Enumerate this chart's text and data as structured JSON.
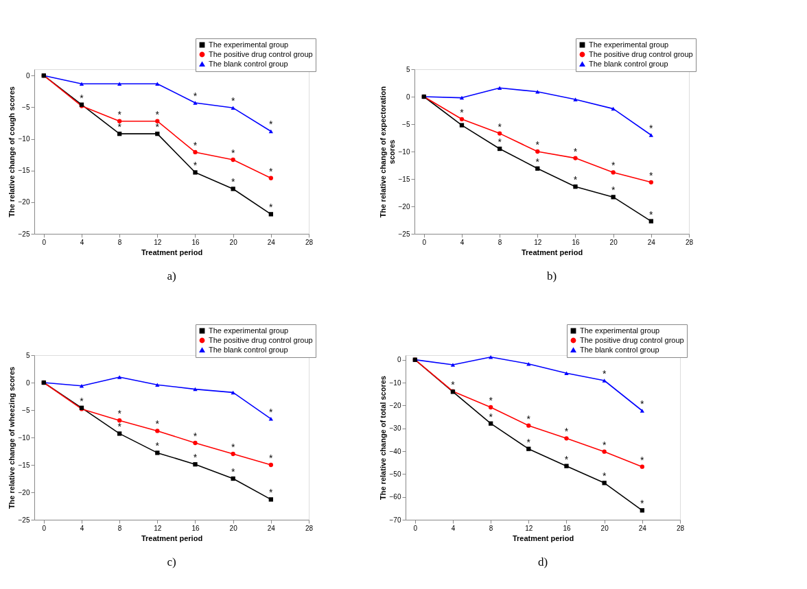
{
  "chart_data": [
    {
      "type": "line",
      "xlabel": "Treatment period",
      "ylabel": "The relative change of cough scores",
      "x": [
        0,
        4,
        8,
        12,
        16,
        20,
        24
      ],
      "xlim": [
        -1,
        28
      ],
      "xticks": [
        0,
        4,
        8,
        12,
        16,
        20,
        24,
        28
      ],
      "ylim": [
        -25,
        1
      ],
      "yticks": [
        -25,
        -20,
        -15,
        -10,
        -5,
        0
      ],
      "legend": "top right",
      "series": [
        {
          "name": "The experimental group",
          "color": "#000000",
          "marker": "square",
          "values": [
            0,
            -4.6,
            -9.2,
            -9.2,
            -15.3,
            -17.9,
            -21.9
          ]
        },
        {
          "name": "The positive drug control group",
          "color": "#ff0000",
          "marker": "circle",
          "values": [
            0,
            -4.8,
            -7.2,
            -7.2,
            -12.1,
            -13.3,
            -16.2
          ]
        },
        {
          "name": "The blank control group",
          "color": "#0000ff",
          "marker": "triangle",
          "values": [
            0,
            -1.3,
            -1.3,
            -1.3,
            -4.3,
            -5.1,
            -8.8
          ]
        }
      ],
      "annotations": [
        {
          "text": "*",
          "x": 4,
          "y": -4.6
        },
        {
          "text": "*",
          "x": 8,
          "y": -9.2
        },
        {
          "text": "*",
          "x": 12,
          "y": -9.2
        },
        {
          "text": "*",
          "x": 16,
          "y": -15.3
        },
        {
          "text": "*",
          "x": 20,
          "y": -17.9
        },
        {
          "text": "*",
          "x": 24,
          "y": -21.9
        },
        {
          "text": "*",
          "x": 8,
          "y": -7.2
        },
        {
          "text": "*",
          "x": 12,
          "y": -7.2
        },
        {
          "text": "*",
          "x": 16,
          "y": -12.1
        },
        {
          "text": "*",
          "x": 20,
          "y": -13.3
        },
        {
          "text": "*",
          "x": 24,
          "y": -16.2
        },
        {
          "text": "*",
          "x": 16,
          "y": -4.3
        },
        {
          "text": "*",
          "x": 20,
          "y": -5.1
        },
        {
          "text": "*",
          "x": 24,
          "y": -8.8
        },
        "a)"
      ]
    },
    {
      "type": "line",
      "xlabel": "Treatment period",
      "ylabel": "The relative change of expectoration scores",
      "x": [
        0,
        4,
        8,
        12,
        16,
        20,
        24
      ],
      "xlim": [
        -1,
        28
      ],
      "xticks": [
        0,
        4,
        8,
        12,
        16,
        20,
        24,
        28
      ],
      "ylim": [
        -25,
        5
      ],
      "yticks": [
        -25,
        -20,
        -15,
        -10,
        -5,
        0,
        5
      ],
      "legend": "top right",
      "series": [
        {
          "name": "The experimental group",
          "color": "#000000",
          "marker": "square",
          "values": [
            0,
            -5.2,
            -9.5,
            -13.1,
            -16.4,
            -18.3,
            -22.7
          ]
        },
        {
          "name": "The positive drug control group",
          "color": "#ff0000",
          "marker": "circle",
          "values": [
            0,
            -4.1,
            -6.7,
            -10,
            -11.2,
            -13.8,
            -15.6
          ]
        },
        {
          "name": "The blank control group",
          "color": "#0000ff",
          "marker": "triangle",
          "values": [
            0,
            -0.2,
            1.6,
            0.9,
            -0.5,
            -2.2,
            -7
          ]
        }
      ],
      "annotations": [
        {
          "text": "*",
          "x": 8,
          "y": -9.5
        },
        {
          "text": "*",
          "x": 12,
          "y": -13.1
        },
        {
          "text": "*",
          "x": 16,
          "y": -16.4
        },
        {
          "text": "*",
          "x": 20,
          "y": -18.3
        },
        {
          "text": "*",
          "x": 24,
          "y": -22.7
        },
        {
          "text": "*",
          "x": 4,
          "y": -4.1
        },
        {
          "text": "*",
          "x": 8,
          "y": -6.7
        },
        {
          "text": "*",
          "x": 12,
          "y": -10
        },
        {
          "text": "*",
          "x": 16,
          "y": -11.2
        },
        {
          "text": "*",
          "x": 20,
          "y": -13.8
        },
        {
          "text": "*",
          "x": 24,
          "y": -15.6
        },
        {
          "text": "*",
          "x": 24,
          "y": -7
        },
        "b)"
      ]
    },
    {
      "type": "line",
      "xlabel": "Treatment period",
      "ylabel": "The relative change of wheezing scores",
      "x": [
        0,
        4,
        8,
        12,
        16,
        20,
        24
      ],
      "xlim": [
        -1,
        28
      ],
      "xticks": [
        0,
        4,
        8,
        12,
        16,
        20,
        24,
        28
      ],
      "ylim": [
        -25,
        5
      ],
      "yticks": [
        -25,
        -20,
        -15,
        -10,
        -5,
        0,
        5
      ],
      "legend": "top right",
      "series": [
        {
          "name": "The experimental group",
          "color": "#000000",
          "marker": "square",
          "values": [
            0,
            -4.6,
            -9.3,
            -12.8,
            -14.9,
            -17.5,
            -21.3
          ]
        },
        {
          "name": "The positive drug control group",
          "color": "#ff0000",
          "marker": "circle",
          "values": [
            0,
            -4.8,
            -6.9,
            -8.8,
            -11,
            -13,
            -15
          ]
        },
        {
          "name": "The blank control group",
          "color": "#0000ff",
          "marker": "triangle",
          "values": [
            0,
            -0.6,
            1,
            -0.4,
            -1.2,
            -1.8,
            -6.6
          ]
        }
      ],
      "annotations": [
        {
          "text": "*",
          "x": 4,
          "y": -4.6
        },
        {
          "text": "*",
          "x": 8,
          "y": -9.3
        },
        {
          "text": "*",
          "x": 12,
          "y": -12.8
        },
        {
          "text": "*",
          "x": 16,
          "y": -14.9
        },
        {
          "text": "*",
          "x": 20,
          "y": -17.5
        },
        {
          "text": "*",
          "x": 24,
          "y": -21.3
        },
        {
          "text": "*",
          "x": 8,
          "y": -6.9
        },
        {
          "text": "*",
          "x": 12,
          "y": -8.8
        },
        {
          "text": "*",
          "x": 16,
          "y": -11
        },
        {
          "text": "*",
          "x": 20,
          "y": -13
        },
        {
          "text": "*",
          "x": 24,
          "y": -15
        },
        {
          "text": "*",
          "x": 24,
          "y": -6.6
        },
        "c)"
      ]
    },
    {
      "type": "line",
      "xlabel": "Treatment period",
      "ylabel": "The relative change of total scores",
      "x": [
        0,
        4,
        8,
        12,
        16,
        20,
        24
      ],
      "xlim": [
        -1,
        28
      ],
      "xticks": [
        0,
        4,
        8,
        12,
        16,
        20,
        24,
        28
      ],
      "ylim": [
        -70,
        2
      ],
      "yticks": [
        -70,
        -60,
        -50,
        -40,
        -30,
        -20,
        -10,
        0
      ],
      "legend": "top right",
      "series": [
        {
          "name": "The experimental group",
          "color": "#000000",
          "marker": "square",
          "values": [
            0,
            -14,
            -27.9,
            -39,
            -46.5,
            -53.9,
            -65.9
          ]
        },
        {
          "name": "The positive drug control group",
          "color": "#ff0000",
          "marker": "circle",
          "values": [
            0,
            -13.8,
            -20.8,
            -28.8,
            -34.4,
            -40.2,
            -46.8
          ]
        },
        {
          "name": "The blank control group",
          "color": "#0000ff",
          "marker": "triangle",
          "values": [
            0,
            -2.2,
            1.2,
            -1.8,
            -5.9,
            -9.1,
            -22.3
          ]
        }
      ],
      "annotations": [
        {
          "text": "*",
          "x": 8,
          "y": -27.9
        },
        {
          "text": "*",
          "x": 12,
          "y": -39
        },
        {
          "text": "*",
          "x": 16,
          "y": -46.5
        },
        {
          "text": "*",
          "x": 20,
          "y": -53.9
        },
        {
          "text": "*",
          "x": 24,
          "y": -65.9
        },
        {
          "text": "*",
          "x": 4,
          "y": -13.8
        },
        {
          "text": "*",
          "x": 8,
          "y": -20.8
        },
        {
          "text": "*",
          "x": 12,
          "y": -28.8
        },
        {
          "text": "*",
          "x": 16,
          "y": -34.4
        },
        {
          "text": "*",
          "x": 20,
          "y": -40.2
        },
        {
          "text": "*",
          "x": 24,
          "y": -46.8
        },
        {
          "text": "*",
          "x": 20,
          "y": -9.1
        },
        {
          "text": "*",
          "x": 24,
          "y": -22.3
        },
        "d)"
      ]
    }
  ]
}
